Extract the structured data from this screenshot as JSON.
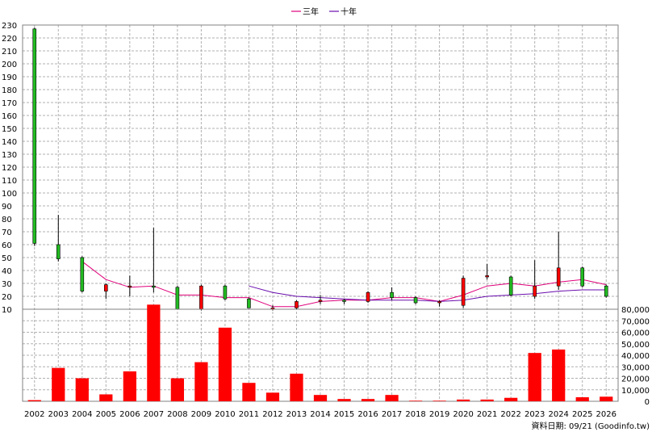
{
  "legend": [
    {
      "label": "三年",
      "color": "#e0007a"
    },
    {
      "label": "十年",
      "color": "#6a0dad"
    }
  ],
  "footer": {
    "source": "資料日期: 09/21 (Goodinfo.tw)"
  },
  "colors": {
    "up": "#ff0000",
    "down": "#22bb22",
    "volume": "#ff0000",
    "ma3": "#e0007a",
    "ma10": "#6a0dad"
  },
  "chart_data": [
    {
      "type": "candlestick",
      "x": [
        "2002",
        "2003",
        "2004",
        "2005",
        "2006",
        "2007",
        "2008",
        "2009",
        "2010",
        "2011",
        "2012",
        "2013",
        "2014",
        "2015",
        "2016",
        "2017",
        "2018",
        "2019",
        "2020",
        "2021",
        "2022",
        "2023",
        "2024",
        "2025",
        "2026"
      ],
      "ylim": [
        10,
        230
      ],
      "yticks": [
        10,
        20,
        30,
        40,
        50,
        60,
        70,
        80,
        90,
        100,
        110,
        120,
        130,
        140,
        150,
        160,
        170,
        180,
        190,
        200,
        210,
        220,
        230
      ],
      "grid": true,
      "candles": [
        {
          "o": 227,
          "h": 228,
          "l": 59,
          "c": 61
        },
        {
          "o": 60,
          "h": 83,
          "l": 47,
          "c": 49
        },
        {
          "o": 50,
          "h": 51,
          "l": 23,
          "c": 24
        },
        {
          "o": 24,
          "h": 30,
          "l": 18,
          "c": 29
        },
        {
          "o": 27,
          "h": 36,
          "l": 20,
          "c": 28
        },
        {
          "o": 28,
          "h": 73,
          "l": 23,
          "c": 27
        },
        {
          "o": 27,
          "h": 28,
          "l": 10,
          "c": 10
        },
        {
          "o": 10,
          "h": 29,
          "l": 9,
          "c": 28
        },
        {
          "o": 28,
          "h": 29,
          "l": 17,
          "c": 18
        },
        {
          "o": 18,
          "h": 19,
          "l": 11,
          "c": 11
        },
        {
          "o": 11,
          "h": 13,
          "l": 9,
          "c": 11
        },
        {
          "o": 11,
          "h": 17,
          "l": 10,
          "c": 16
        },
        {
          "o": 16,
          "h": 21,
          "l": 14,
          "c": 17
        },
        {
          "o": 17,
          "h": 18,
          "l": 14,
          "c": 16
        },
        {
          "o": 16,
          "h": 24,
          "l": 15,
          "c": 23
        },
        {
          "o": 23,
          "h": 27,
          "l": 17,
          "c": 19
        },
        {
          "o": 19,
          "h": 20,
          "l": 14,
          "c": 15
        },
        {
          "o": 15,
          "h": 17,
          "l": 12,
          "c": 16
        },
        {
          "o": 13,
          "h": 36,
          "l": 11,
          "c": 34
        },
        {
          "o": 35,
          "h": 45,
          "l": 33,
          "c": 36
        },
        {
          "o": 35,
          "h": 36,
          "l": 20,
          "c": 21
        },
        {
          "o": 20,
          "h": 48,
          "l": 18,
          "c": 28
        },
        {
          "o": 28,
          "h": 70,
          "l": 25,
          "c": 42
        },
        {
          "o": 42,
          "h": 43,
          "l": 27,
          "c": 28
        },
        {
          "o": 28,
          "h": 29,
          "l": 19,
          "c": 20
        }
      ],
      "series": [
        {
          "name": "三年",
          "values": [
            null,
            null,
            47,
            33,
            27,
            28,
            21,
            21,
            19,
            19,
            12,
            12,
            16,
            17,
            17,
            19,
            19,
            16,
            21,
            28,
            30,
            28,
            31,
            33,
            29
          ]
        },
        {
          "name": "十年",
          "values": [
            null,
            null,
            null,
            null,
            null,
            null,
            null,
            null,
            null,
            28,
            23,
            20,
            19,
            18,
            17,
            17,
            17,
            16,
            17,
            20,
            21,
            22,
            24,
            25,
            25
          ]
        }
      ]
    },
    {
      "type": "bar",
      "x": [
        "2002",
        "2003",
        "2004",
        "2005",
        "2006",
        "2007",
        "2008",
        "2009",
        "2010",
        "2011",
        "2012",
        "2013",
        "2014",
        "2015",
        "2016",
        "2017",
        "2018",
        "2019",
        "2020",
        "2021",
        "2022",
        "2023",
        "2024",
        "2025",
        "2026"
      ],
      "values": [
        1000,
        29000,
        20000,
        6000,
        26000,
        84000,
        20000,
        34000,
        64000,
        16000,
        7500,
        24000,
        5500,
        2000,
        2000,
        5500,
        500,
        500,
        1500,
        1500,
        3000,
        42000,
        45000,
        3500,
        4000
      ],
      "ylim": [
        0,
        80000
      ],
      "yticks": [
        {
          "v": 0,
          "t": "0"
        },
        {
          "v": 10000,
          "t": "10,000"
        },
        {
          "v": 20000,
          "t": "20,000"
        },
        {
          "v": 30000,
          "t": "30,000"
        },
        {
          "v": 40000,
          "t": "40,000"
        },
        {
          "v": 50000,
          "t": "50,000"
        },
        {
          "v": 60000,
          "t": "60,000"
        },
        {
          "v": 70000,
          "t": "70,000"
        },
        {
          "v": 80000,
          "t": "80,000"
        }
      ],
      "grid": true
    }
  ]
}
